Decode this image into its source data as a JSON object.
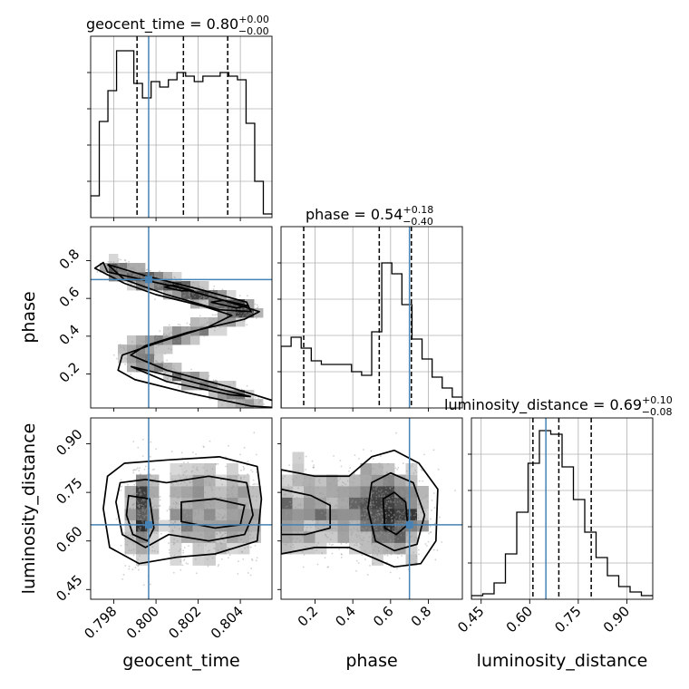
{
  "chart_data": {
    "type": "corner",
    "parameters": [
      "geocent_time",
      "phase",
      "luminosity_distance"
    ],
    "axis_labels": {
      "geocent_time": "geocent_time",
      "phase": "phase",
      "luminosity_distance": "luminosity_distance"
    },
    "ranges": {
      "geocent_time": [
        0.7969,
        0.8055
      ],
      "phase": [
        0.02,
        0.98
      ],
      "luminosity_distance": [
        0.42,
        0.98
      ]
    },
    "ticks": {
      "geocent_time": [
        0.798,
        0.8,
        0.802,
        0.804
      ],
      "phase": [
        0.2,
        0.4,
        0.6,
        0.8
      ],
      "luminosity_distance": [
        0.45,
        0.6,
        0.75,
        0.9
      ]
    },
    "tick_labels": {
      "geocent_time": [
        "0.798",
        "0.800",
        "0.802",
        "0.804"
      ],
      "phase": [
        "0.2",
        "0.4",
        "0.6",
        "0.8"
      ],
      "luminosity_distance": [
        "0.45",
        "0.60",
        "0.75",
        "0.90"
      ]
    },
    "truths": {
      "geocent_time": 0.79965,
      "phase": 0.7,
      "luminosity_distance": 0.65
    },
    "quantiles": {
      "geocent_time": [
        0.7991,
        0.8013,
        0.8034
      ],
      "phase": [
        0.14,
        0.54,
        0.71
      ],
      "luminosity_distance": [
        0.61,
        0.69,
        0.79
      ]
    },
    "titles": {
      "geocent_time": {
        "text": "geocent_time = 0.80",
        "sup": "+0.00",
        "sub": "−0.00"
      },
      "phase": {
        "text": "phase = 0.54",
        "sup": "+0.18",
        "sub": "−0.40"
      },
      "luminosity_distance": {
        "text": "luminosity_distance = 0.69",
        "sup": "+0.10",
        "sub": "−0.08"
      }
    },
    "histograms": {
      "geocent_time": [
        0.12,
        0.53,
        0.7,
        0.92,
        0.92,
        0.74,
        0.66,
        0.75,
        0.72,
        0.76,
        0.8,
        0.78,
        0.75,
        0.78,
        0.78,
        0.8,
        0.78,
        0.76,
        0.52,
        0.2,
        0.02
      ],
      "phase": [
        0.34,
        0.39,
        0.33,
        0.26,
        0.24,
        0.24,
        0.24,
        0.2,
        0.18,
        0.42,
        0.8,
        0.74,
        0.57,
        0.38,
        0.27,
        0.17,
        0.11,
        0.06
      ],
      "luminosity_distance": [
        0.02,
        0.03,
        0.09,
        0.25,
        0.48,
        0.75,
        0.93,
        0.91,
        0.73,
        0.55,
        0.37,
        0.23,
        0.13,
        0.07,
        0.04,
        0.02
      ]
    },
    "hist_ymax": 1.0,
    "grid": true
  }
}
